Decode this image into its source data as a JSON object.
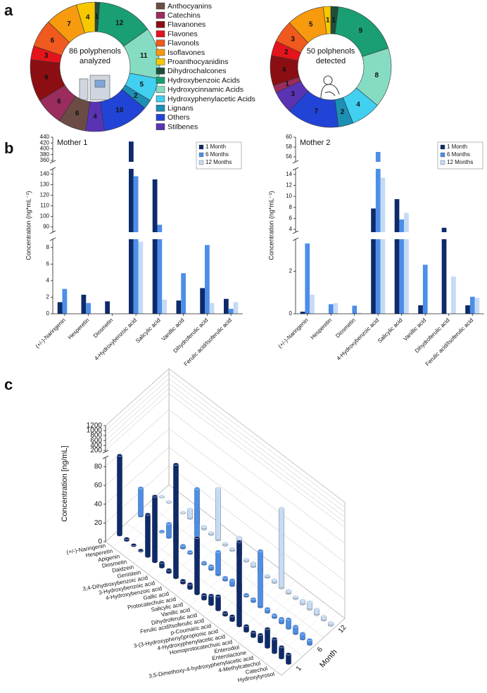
{
  "chart_data": [
    {
      "type": "pie",
      "panel_label": "a",
      "center_label": [
        "86 polyphenols",
        "analyzed"
      ],
      "categories": [
        "Anthocyanins",
        "Catechins",
        "Flavanones",
        "Flavones",
        "Flavonols",
        "Isoflavones",
        "Proanthocyanidins",
        "Dihydrochalcones",
        "Hydroxybenzoic Acids",
        "Hydroxycinnamic Acids",
        "Hydroxyphenylacetic Acids",
        "Lignans",
        "Others",
        "Stilbenes"
      ],
      "colors": [
        "#6b4c45",
        "#9b2d5e",
        "#8b0f12",
        "#e3141b",
        "#f05a1e",
        "#f79a0e",
        "#f7c800",
        "#1f4d3a",
        "#1a9e73",
        "#86dcc3",
        "#41d0f0",
        "#1c8fb5",
        "#2144d6",
        "#5a33b5"
      ],
      "values": [
        6,
        6,
        9,
        3,
        6,
        7,
        4,
        1,
        12,
        11,
        5,
        2,
        10,
        4
      ]
    },
    {
      "type": "pie",
      "center_label": [
        "50 polphenols",
        "detected"
      ],
      "values": [
        0,
        1,
        4,
        2,
        3,
        5,
        1,
        1,
        9,
        8,
        4,
        2,
        7,
        3
      ]
    },
    {
      "type": "bar",
      "panel_label": "b",
      "title": "Mother 1",
      "ylabel": "Concentration (ng*mL⁻¹)",
      "categories": [
        "(+/-)-Naringenin",
        "Hesperetin",
        "Diosmetin",
        "4-Hydroxybenzoic acid",
        "Salicylic acid",
        "Vanillic acid",
        "Dihydroferulic acid",
        "Ferulic acid/Isoferulic acid"
      ],
      "series": [
        {
          "name": "1 Month",
          "color": "#0d2a6b",
          "values": [
            1.4,
            2.3,
            1.5,
            425,
            135,
            1.6,
            3.1,
            1.8
          ]
        },
        {
          "name": "6 Months",
          "color": "#4d8ee8",
          "values": [
            3.0,
            1.3,
            null,
            138,
            92,
            4.9,
            8.3,
            0.6
          ]
        },
        {
          "name": "12 Months",
          "color": "#c5dbf5",
          "values": [
            null,
            null,
            null,
            8.7,
            1.7,
            null,
            1.3,
            1.4
          ]
        }
      ],
      "y_segments": [
        {
          "ylim": [
            0,
            9
          ],
          "yticks": [
            0,
            2,
            4,
            6,
            8
          ]
        },
        {
          "ylim": [
            85,
            145
          ],
          "yticks": [
            90,
            100,
            110,
            120,
            130,
            140
          ]
        },
        {
          "ylim": [
            355,
            440
          ],
          "yticks": [
            360,
            380,
            400,
            420,
            440
          ]
        }
      ]
    },
    {
      "type": "bar",
      "title": "Mother 2",
      "ylabel": "Concentration (ng*mL⁻¹)",
      "categories": [
        "(+/-)-Naringenin",
        "Hesperetin",
        "Diosmetin",
        "4-Hydroxybenzoic acid",
        "Salicylic acid",
        "Vanillic acid",
        "Dihydroferulic acid",
        "Ferulic acid/Isoferulic acid"
      ],
      "series": [
        {
          "name": "1 Month",
          "color": "#0d2a6b",
          "values": [
            0.1,
            null,
            null,
            7.8,
            9.5,
            0.4,
            4.3,
            0.4
          ]
        },
        {
          "name": "6 Months",
          "color": "#4d8ee8",
          "values": [
            3.3,
            0.45,
            0.38,
            57,
            5.8,
            2.3,
            null,
            0.8
          ]
        },
        {
          "name": "12 Months",
          "color": "#c5dbf5",
          "values": [
            0.9,
            0.5,
            0.05,
            13.4,
            7.0,
            null,
            1.75,
            0.75
          ]
        }
      ],
      "y_segments": [
        {
          "ylim": [
            0,
            3.5
          ],
          "yticks": [
            0,
            2
          ]
        },
        {
          "ylim": [
            3.5,
            15
          ],
          "yticks": [
            4,
            6,
            8,
            10,
            12,
            14
          ]
        },
        {
          "ylim": [
            55,
            60
          ],
          "yticks": [
            56,
            58,
            60
          ]
        }
      ]
    },
    {
      "type": "bar3d",
      "panel_label": "c",
      "zlabel": "Concentration [ng/mL]",
      "month_label": "Month",
      "categories": [
        "(+/-)-Naringenin",
        "Hesperetin",
        "Apigenin",
        "Diosmetin",
        "Daidzein",
        "Genistein",
        "3,4-Dihydroxybenzoic acid",
        "3-Hydroxybenzoic acid",
        "4-Hydroxybenzoic acid",
        "Gallic acid",
        "Protocatechuic acid",
        "Salicylic acid",
        "Vanillic acid",
        "Dihydroferulic acid",
        "Ferulic acid/Isoferulic acid",
        "p-Coumaric acid",
        "3-(3-Hydroxyphenyl)propionic acid",
        "4-Hydroxyphenylacetic acid",
        "Homoprotocatechuic acid",
        "Enterodiol",
        "Enterolactone",
        "3,5-Dimethoxy-4-hydroxyphenylacetic acid",
        "4-Methylcatechol",
        "Catechol",
        "Hydroxytyrosol"
      ],
      "category_colors": [
        "#d0202a",
        "#d0202a",
        "#d0202a",
        "#d0202a",
        "#f0a020",
        "#f0a020",
        "#1a9e73",
        "#1a9e73",
        "#1a9e73",
        "#1a9e73",
        "#1a9e73",
        "#1a9e73",
        "#1a9e73",
        "#4fc9a8",
        "#4fc9a8",
        "#4fc9a8",
        "#38bde0",
        "#38bde0",
        "#38bde0",
        "#1c8fb5",
        "#1c8fb5",
        "#2144d6",
        "#2144d6",
        "#2144d6",
        "#2144d6"
      ],
      "series": [
        {
          "name": "1",
          "color": "#0d2a6b",
          "values": [
            85,
            2,
            1,
            1,
            45,
            70,
            5,
            3,
            1100,
            3,
            5,
            60,
            5,
            10,
            15,
            3,
            5,
            90,
            6,
            5,
            8,
            20,
            15,
            12,
            10
          ]
        },
        {
          "name": "6",
          "color": "#4d8ee8",
          "values": [
            30,
            1,
            1,
            1,
            15,
            20,
            3,
            2,
            75,
            2,
            4,
            25,
            3,
            6,
            8,
            2,
            3,
            60,
            4,
            3,
            5,
            10,
            8,
            6,
            5
          ]
        },
        {
          "name": "12",
          "color": "#c5dbf5",
          "values": [
            1,
            1,
            1,
            1,
            10,
            15,
            3,
            2,
            55,
            2,
            2,
            20,
            2,
            4,
            6,
            2,
            3,
            85,
            3,
            2,
            4,
            8,
            6,
            4,
            3
          ]
        }
      ],
      "z_segments": [
        {
          "zlim": [
            0,
            90
          ],
          "zticks": [
            0,
            20,
            40,
            60,
            80
          ]
        },
        {
          "zlim": [
            150,
            1200
          ],
          "zticks": [
            200,
            400,
            600,
            800,
            1000,
            1200
          ]
        }
      ]
    }
  ]
}
